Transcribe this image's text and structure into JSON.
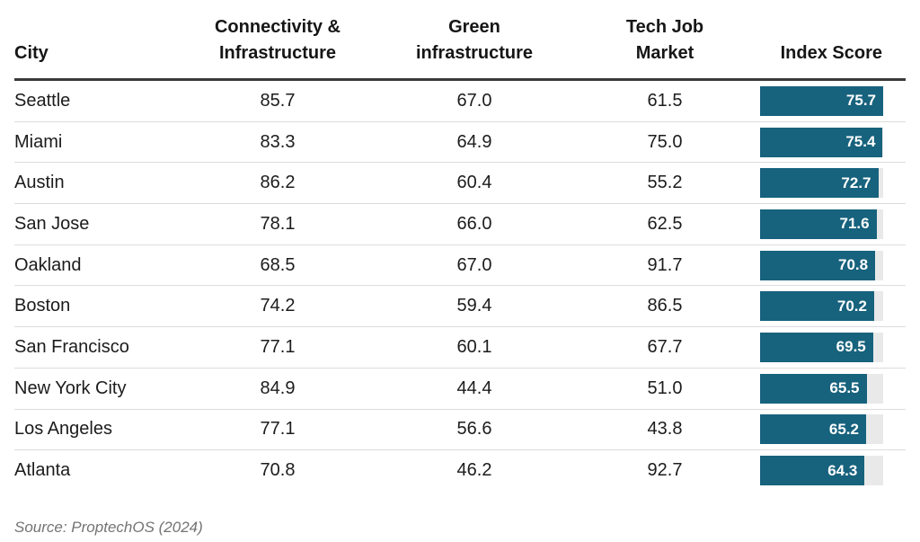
{
  "table": {
    "columns": [
      {
        "label": "City"
      },
      {
        "label": "Connectivity &\nInfrastructure"
      },
      {
        "label": "Green\ninfrastructure"
      },
      {
        "label": "Tech Job\nMarket"
      },
      {
        "label": "Index Score"
      }
    ],
    "rows": [
      {
        "city": "Seattle",
        "connectivity": "85.7",
        "green": "67.0",
        "tech_job": "61.5",
        "index_score": "75.7"
      },
      {
        "city": "Miami",
        "connectivity": "83.3",
        "green": "64.9",
        "tech_job": "75.0",
        "index_score": "75.4"
      },
      {
        "city": "Austin",
        "connectivity": "86.2",
        "green": "60.4",
        "tech_job": "55.2",
        "index_score": "72.7"
      },
      {
        "city": "San Jose",
        "connectivity": "78.1",
        "green": "66.0",
        "tech_job": "62.5",
        "index_score": "71.6"
      },
      {
        "city": "Oakland",
        "connectivity": "68.5",
        "green": "67.0",
        "tech_job": "91.7",
        "index_score": "70.8"
      },
      {
        "city": "Boston",
        "connectivity": "74.2",
        "green": "59.4",
        "tech_job": "86.5",
        "index_score": "70.2"
      },
      {
        "city": "San Francisco",
        "connectivity": "77.1",
        "green": "60.1",
        "tech_job": "67.7",
        "index_score": "69.5"
      },
      {
        "city": "New York City",
        "connectivity": "84.9",
        "green": "44.4",
        "tech_job": "51.0",
        "index_score": "65.5"
      },
      {
        "city": "Los Angeles",
        "connectivity": "77.1",
        "green": "56.6",
        "tech_job": "43.8",
        "index_score": "65.2"
      },
      {
        "city": "Atlanta",
        "connectivity": "70.8",
        "green": "46.2",
        "tech_job": "92.7",
        "index_score": "64.3"
      }
    ]
  },
  "source_note": "Source: ProptechOS (2024)",
  "colors": {
    "bar_fill": "#17627d",
    "bar_track": "#e9e9e9",
    "header_rule": "#3a3a3a",
    "row_divider": "#dcdcdc",
    "source_text": "#737373"
  },
  "chart_data": {
    "type": "table",
    "title": "",
    "columns": [
      "City",
      "Connectivity & Infrastructure",
      "Green infrastructure",
      "Tech Job Market",
      "Index Score"
    ],
    "rows": [
      [
        "Seattle",
        85.7,
        67.0,
        61.5,
        75.7
      ],
      [
        "Miami",
        83.3,
        64.9,
        75.0,
        75.4
      ],
      [
        "Austin",
        86.2,
        60.4,
        55.2,
        72.7
      ],
      [
        "San Jose",
        78.1,
        66.0,
        62.5,
        71.6
      ],
      [
        "Oakland",
        68.5,
        67.0,
        91.7,
        70.8
      ],
      [
        "Boston",
        74.2,
        59.4,
        86.5,
        70.2
      ],
      [
        "San Francisco",
        77.1,
        60.1,
        67.7,
        69.5
      ],
      [
        "New York City",
        84.9,
        44.4,
        51.0,
        65.5
      ],
      [
        "Los Angeles",
        77.1,
        56.6,
        43.8,
        65.2
      ],
      [
        "Atlanta",
        70.8,
        46.2,
        92.7,
        64.3
      ]
    ],
    "series": [
      {
        "name": "Connectivity & Infrastructure",
        "values": [
          85.7,
          83.3,
          86.2,
          78.1,
          68.5,
          74.2,
          77.1,
          84.9,
          77.1,
          70.8
        ]
      },
      {
        "name": "Green infrastructure",
        "values": [
          67.0,
          64.9,
          60.4,
          66.0,
          67.0,
          59.4,
          60.1,
          44.4,
          56.6,
          46.2
        ]
      },
      {
        "name": "Tech Job Market",
        "values": [
          61.5,
          75.0,
          55.2,
          62.5,
          91.7,
          86.5,
          67.7,
          51.0,
          43.8,
          92.7
        ]
      },
      {
        "name": "Index Score",
        "values": [
          75.7,
          75.4,
          72.7,
          71.6,
          70.8,
          70.2,
          69.5,
          65.5,
          65.2,
          64.3
        ]
      }
    ],
    "categories": [
      "Seattle",
      "Miami",
      "Austin",
      "San Jose",
      "Oakland",
      "Boston",
      "San Francisco",
      "New York City",
      "Los Angeles",
      "Atlanta"
    ],
    "layout_hints": {
      "index_score_rendered_as": "horizontal bars, width scaled to max index score (75.7)",
      "bar_color": "#17627d",
      "track_color": "#e9e9e9",
      "grid": "horizontal row dividers only",
      "legend": "none"
    },
    "source": "Source: ProptechOS (2024)"
  }
}
